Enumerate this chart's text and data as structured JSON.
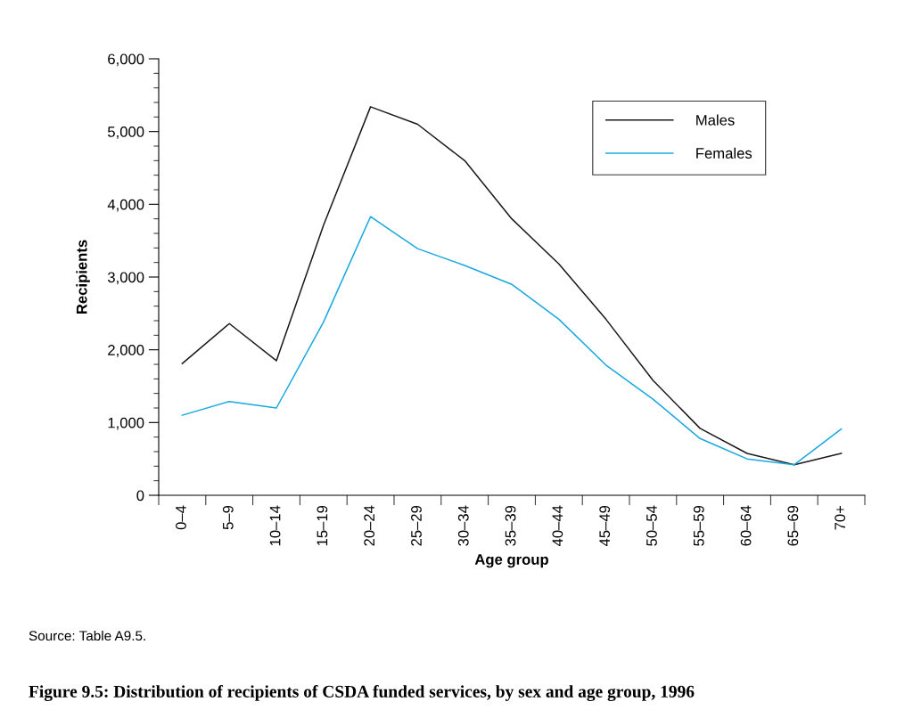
{
  "chart_data": {
    "type": "line",
    "title": "Figure 9.5: Distribution of recipients of CSDA funded services, by sex and age group, 1996",
    "xlabel": "Age group",
    "ylabel": "Recipients",
    "annotations": [
      "Source: Table A9.5."
    ],
    "categories": [
      "0–4",
      "5–9",
      "10–14",
      "15–19",
      "20–24",
      "25–29",
      "30–34",
      "35–39",
      "40–44",
      "45–49",
      "50–54",
      "55–59",
      "60–64",
      "65–69",
      "70+"
    ],
    "series": [
      {
        "name": "Males",
        "color": "#1a1a1a",
        "values": [
          1810,
          2360,
          1850,
          3710,
          5340,
          5100,
          4600,
          3800,
          3180,
          2420,
          1580,
          920,
          575,
          420,
          575
        ]
      },
      {
        "name": "Females",
        "color": "#1aa8e0",
        "values": [
          1100,
          1290,
          1200,
          2380,
          3830,
          3390,
          3160,
          2900,
          2420,
          1790,
          1320,
          780,
          500,
          420,
          910
        ]
      }
    ],
    "ylim": [
      0,
      6000
    ],
    "yticks": [
      {
        "value": 0,
        "label": "0"
      },
      {
        "value": 200,
        "label": null
      },
      {
        "value": 400,
        "label": null
      },
      {
        "value": 600,
        "label": null
      },
      {
        "value": 800,
        "label": null
      },
      {
        "value": 1000,
        "label": "1,000"
      },
      {
        "value": 1200,
        "label": null
      },
      {
        "value": 1400,
        "label": null
      },
      {
        "value": 1600,
        "label": null
      },
      {
        "value": 1800,
        "label": null
      },
      {
        "value": 2000,
        "label": "2,000"
      },
      {
        "value": 2200,
        "label": null
      },
      {
        "value": 2400,
        "label": null
      },
      {
        "value": 2600,
        "label": null
      },
      {
        "value": 2800,
        "label": null
      },
      {
        "value": 3000,
        "label": "3,000"
      },
      {
        "value": 3200,
        "label": null
      },
      {
        "value": 3400,
        "label": null
      },
      {
        "value": 3600,
        "label": null
      },
      {
        "value": 3800,
        "label": null
      },
      {
        "value": 4000,
        "label": "4,000"
      },
      {
        "value": 4200,
        "label": null
      },
      {
        "value": 4400,
        "label": null
      },
      {
        "value": 4600,
        "label": null
      },
      {
        "value": 4800,
        "label": null
      },
      {
        "value": 5000,
        "label": "5,000"
      },
      {
        "value": 5200,
        "label": null
      },
      {
        "value": 5400,
        "label": null
      },
      {
        "value": 5600,
        "label": null
      },
      {
        "value": 5800,
        "label": null
      },
      {
        "value": 6000,
        "label": "6,000"
      }
    ],
    "grid": false,
    "legend": "top right",
    "marker": "none",
    "line_style": "solid"
  }
}
